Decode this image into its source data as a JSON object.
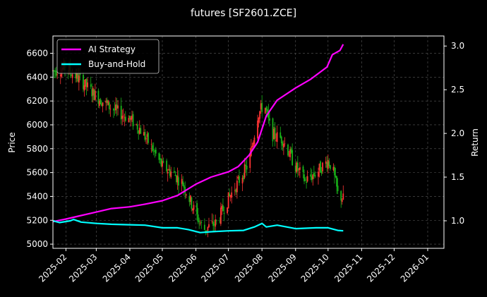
{
  "chart_data": {
    "type": "line",
    "title": "futures [SF2601.ZCE]",
    "xlabel": "",
    "ylabel": "Price",
    "ylabel_right": "Return",
    "grid": true,
    "legend_position": "top-left",
    "x_ticks": [
      "2025-02",
      "2025-03",
      "2025-04",
      "2025-05",
      "2025-06",
      "2025-07",
      "2025-08",
      "2025-09",
      "2025-10",
      "2025-11",
      "2025-12",
      "2026-01"
    ],
    "x_range": [
      "2025-01-20",
      "2026-01-16"
    ],
    "y_ticks": [
      5000,
      5200,
      5400,
      5600,
      5800,
      6000,
      6200,
      6400,
      6600
    ],
    "ylim": [
      4965,
      6745
    ],
    "y2_ticks": [
      "1.0",
      "1.5",
      "2.0",
      "2.5",
      "3.0"
    ],
    "y2lim": [
      0.685,
      3.115
    ],
    "colors": {
      "up": "#ff3333",
      "down": "#19b219",
      "ai": "#ff00ff",
      "bh": "#00ffff"
    },
    "price_waypoints": [
      {
        "x": "2025-01-20",
        "y": 6450
      },
      {
        "x": "2025-02-01",
        "y": 6480
      },
      {
        "x": "2025-02-15",
        "y": 6370
      },
      {
        "x": "2025-03-01",
        "y": 6240
      },
      {
        "x": "2025-03-15",
        "y": 6140
      },
      {
        "x": "2025-04-01",
        "y": 6050
      },
      {
        "x": "2025-04-10",
        "y": 5970
      },
      {
        "x": "2025-04-20",
        "y": 5830
      },
      {
        "x": "2025-05-01",
        "y": 5650
      },
      {
        "x": "2025-05-10",
        "y": 5600
      },
      {
        "x": "2025-05-20",
        "y": 5510
      },
      {
        "x": "2025-06-01",
        "y": 5250
      },
      {
        "x": "2025-06-08",
        "y": 5120
      },
      {
        "x": "2025-06-20",
        "y": 5180
      },
      {
        "x": "2025-07-01",
        "y": 5380
      },
      {
        "x": "2025-07-10",
        "y": 5520
      },
      {
        "x": "2025-07-20",
        "y": 5680
      },
      {
        "x": "2025-07-28",
        "y": 6080
      },
      {
        "x": "2025-08-03",
        "y": 6180
      },
      {
        "x": "2025-08-10",
        "y": 5920
      },
      {
        "x": "2025-08-20",
        "y": 5880
      },
      {
        "x": "2025-09-01",
        "y": 5650
      },
      {
        "x": "2025-09-10",
        "y": 5530
      },
      {
        "x": "2025-09-20",
        "y": 5600
      },
      {
        "x": "2025-10-01",
        "y": 5700
      },
      {
        "x": "2025-10-05",
        "y": 5640
      },
      {
        "x": "2025-10-10",
        "y": 5420
      },
      {
        "x": "2025-10-15",
        "y": 5380
      }
    ],
    "series": [
      {
        "name": "AI Strategy",
        "points": [
          {
            "x": "2025-01-20",
            "y": 0.99
          },
          {
            "x": "2025-02-01",
            "y": 1.02
          },
          {
            "x": "2025-02-15",
            "y": 1.06
          },
          {
            "x": "2025-03-01",
            "y": 1.1
          },
          {
            "x": "2025-03-15",
            "y": 1.14
          },
          {
            "x": "2025-04-01",
            "y": 1.16
          },
          {
            "x": "2025-04-15",
            "y": 1.19
          },
          {
            "x": "2025-05-01",
            "y": 1.23
          },
          {
            "x": "2025-05-15",
            "y": 1.29
          },
          {
            "x": "2025-06-01",
            "y": 1.42
          },
          {
            "x": "2025-06-15",
            "y": 1.5
          },
          {
            "x": "2025-07-01",
            "y": 1.56
          },
          {
            "x": "2025-07-10",
            "y": 1.62
          },
          {
            "x": "2025-07-20",
            "y": 1.75
          },
          {
            "x": "2025-07-28",
            "y": 1.9
          },
          {
            "x": "2025-08-05",
            "y": 2.2
          },
          {
            "x": "2025-08-15",
            "y": 2.38
          },
          {
            "x": "2025-09-01",
            "y": 2.52
          },
          {
            "x": "2025-09-15",
            "y": 2.62
          },
          {
            "x": "2025-09-30",
            "y": 2.76
          },
          {
            "x": "2025-10-05",
            "y": 2.9
          },
          {
            "x": "2025-10-12",
            "y": 2.95
          },
          {
            "x": "2025-10-15",
            "y": 3.02
          }
        ]
      },
      {
        "name": "Buy-and-Hold",
        "points": [
          {
            "x": "2025-01-20",
            "y": 1.0
          },
          {
            "x": "2025-01-26",
            "y": 0.98
          },
          {
            "x": "2025-02-05",
            "y": 1.0
          },
          {
            "x": "2025-02-08",
            "y": 1.015
          },
          {
            "x": "2025-02-15",
            "y": 0.985
          },
          {
            "x": "2025-03-01",
            "y": 0.97
          },
          {
            "x": "2025-03-15",
            "y": 0.96
          },
          {
            "x": "2025-04-01",
            "y": 0.955
          },
          {
            "x": "2025-04-15",
            "y": 0.95
          },
          {
            "x": "2025-05-01",
            "y": 0.92
          },
          {
            "x": "2025-05-15",
            "y": 0.92
          },
          {
            "x": "2025-05-25",
            "y": 0.9
          },
          {
            "x": "2025-06-05",
            "y": 0.865
          },
          {
            "x": "2025-06-15",
            "y": 0.875
          },
          {
            "x": "2025-07-01",
            "y": 0.885
          },
          {
            "x": "2025-07-15",
            "y": 0.89
          },
          {
            "x": "2025-07-25",
            "y": 0.93
          },
          {
            "x": "2025-08-01",
            "y": 0.97
          },
          {
            "x": "2025-08-05",
            "y": 0.93
          },
          {
            "x": "2025-08-15",
            "y": 0.95
          },
          {
            "x": "2025-09-01",
            "y": 0.91
          },
          {
            "x": "2025-09-20",
            "y": 0.92
          },
          {
            "x": "2025-10-01",
            "y": 0.92
          },
          {
            "x": "2025-10-10",
            "y": 0.89
          },
          {
            "x": "2025-10-15",
            "y": 0.885
          }
        ]
      }
    ]
  }
}
